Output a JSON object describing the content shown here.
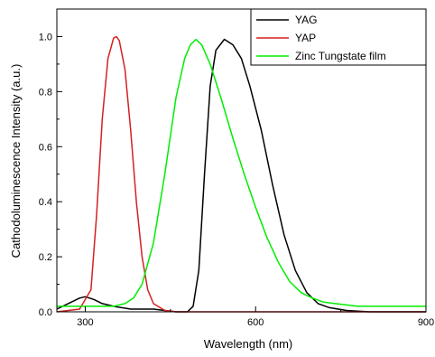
{
  "chart_data": {
    "type": "line",
    "xlabel": "Wavelength (nm)",
    "ylabel": "Cathodoluminescence Intensity (a.u.)",
    "xlim": [
      250,
      900
    ],
    "ylim": [
      0,
      1.1
    ],
    "x_ticks": [
      300,
      600,
      900
    ],
    "y_ticks": [
      0.0,
      0.2,
      0.4,
      0.6,
      0.8,
      1.0
    ],
    "x_tick_labels": [
      "300",
      "600",
      "900"
    ],
    "y_tick_labels": [
      "0.0",
      "0.2",
      "0.4",
      "0.6",
      "0.8",
      "1.0"
    ],
    "legend_position": "top-right",
    "grid": false,
    "series": [
      {
        "name": "YAG",
        "color": "#000000",
        "x": [
          250,
          270,
          290,
          300,
          315,
          330,
          350,
          380,
          420,
          460,
          480,
          490,
          500,
          510,
          520,
          530,
          545,
          560,
          575,
          590,
          610,
          630,
          650,
          670,
          690,
          710,
          730,
          760,
          800,
          850,
          900
        ],
        "y": [
          0.01,
          0.03,
          0.05,
          0.055,
          0.045,
          0.03,
          0.02,
          0.01,
          0.01,
          0.0,
          0.0,
          0.02,
          0.15,
          0.5,
          0.82,
          0.95,
          0.99,
          0.97,
          0.92,
          0.82,
          0.66,
          0.46,
          0.28,
          0.15,
          0.07,
          0.03,
          0.015,
          0.005,
          0.0,
          0.0,
          0.0
        ]
      },
      {
        "name": "YAP",
        "color": "#d62020",
        "x": [
          250,
          290,
          310,
          320,
          330,
          340,
          350,
          355,
          360,
          370,
          380,
          390,
          400,
          410,
          420,
          440,
          460,
          500,
          600,
          700,
          800,
          900
        ],
        "y": [
          0.0,
          0.01,
          0.08,
          0.35,
          0.7,
          0.92,
          0.995,
          1.0,
          0.985,
          0.88,
          0.66,
          0.4,
          0.2,
          0.08,
          0.03,
          0.005,
          0.0,
          0.0,
          0.0,
          0.0,
          0.0,
          0.0
        ]
      },
      {
        "name": "Zinc Tungstate film",
        "color": "#00ee00",
        "x": [
          250,
          300,
          350,
          370,
          385,
          400,
          420,
          440,
          460,
          475,
          485,
          495,
          505,
          520,
          540,
          560,
          580,
          600,
          620,
          640,
          660,
          680,
          700,
          720,
          740,
          760,
          780,
          800,
          850,
          900
        ],
        "y": [
          0.02,
          0.02,
          0.02,
          0.03,
          0.05,
          0.1,
          0.25,
          0.5,
          0.78,
          0.92,
          0.97,
          0.99,
          0.97,
          0.9,
          0.77,
          0.63,
          0.5,
          0.38,
          0.27,
          0.18,
          0.11,
          0.07,
          0.05,
          0.035,
          0.03,
          0.025,
          0.02,
          0.02,
          0.02,
          0.02
        ]
      }
    ]
  }
}
